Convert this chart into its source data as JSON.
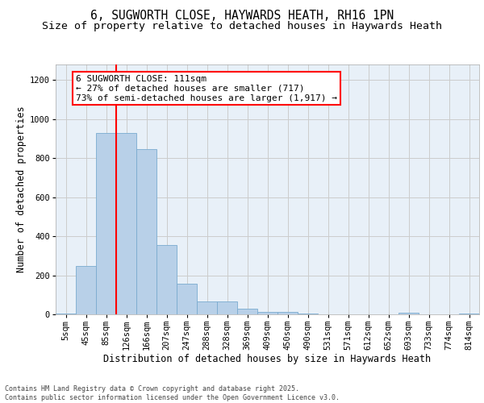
{
  "title_line1": "6, SUGWORTH CLOSE, HAYWARDS HEATH, RH16 1PN",
  "title_line2": "Size of property relative to detached houses in Haywards Heath",
  "xlabel": "Distribution of detached houses by size in Haywards Heath",
  "ylabel": "Number of detached properties",
  "categories": [
    "5sqm",
    "45sqm",
    "85sqm",
    "126sqm",
    "166sqm",
    "207sqm",
    "247sqm",
    "288sqm",
    "328sqm",
    "369sqm",
    "409sqm",
    "450sqm",
    "490sqm",
    "531sqm",
    "571sqm",
    "612sqm",
    "652sqm",
    "693sqm",
    "733sqm",
    "774sqm",
    "814sqm"
  ],
  "values": [
    5,
    247,
    930,
    930,
    845,
    355,
    157,
    65,
    65,
    28,
    13,
    13,
    5,
    0,
    0,
    0,
    0,
    10,
    0,
    0,
    5
  ],
  "bar_color": "#b8d0e8",
  "bar_edge_color": "#7aabcf",
  "vline_x": 2.5,
  "vline_color": "red",
  "annotation_text": "6 SUGWORTH CLOSE: 111sqm\n← 27% of detached houses are smaller (717)\n73% of semi-detached houses are larger (1,917) →",
  "annotation_box_color": "white",
  "annotation_box_edge_color": "red",
  "ylim": [
    0,
    1280
  ],
  "yticks": [
    0,
    200,
    400,
    600,
    800,
    1000,
    1200
  ],
  "grid_color": "#cccccc",
  "bg_color": "#e8f0f8",
  "footer_text": "Contains HM Land Registry data © Crown copyright and database right 2025.\nContains public sector information licensed under the Open Government Licence v3.0.",
  "title_fontsize": 10.5,
  "subtitle_fontsize": 9.5,
  "axis_label_fontsize": 8.5,
  "tick_fontsize": 7.5,
  "annotation_fontsize": 8.0,
  "footer_fontsize": 6.0
}
